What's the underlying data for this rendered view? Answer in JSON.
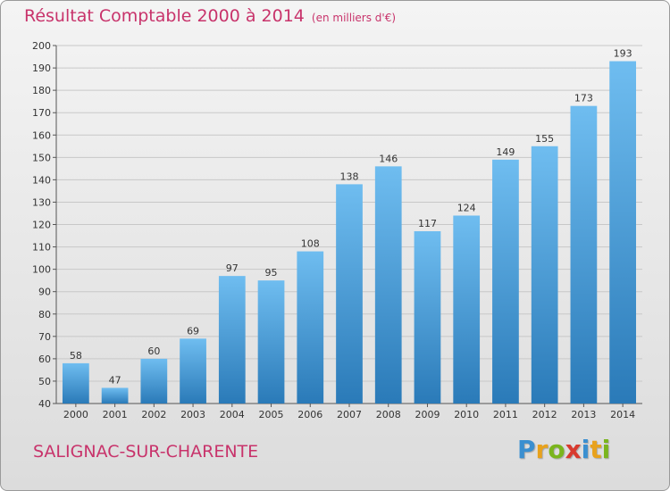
{
  "header": {
    "title": "Résultat Comptable 2000 à 2014",
    "subtitle": "(en milliers d'€)"
  },
  "commune": "SALIGNAC-SUR-CHARENTE",
  "logo": {
    "letters": [
      "P",
      "r",
      "o",
      "x",
      "i",
      "t",
      "i"
    ],
    "colors": [
      "#3a8fd0",
      "#e8a21c",
      "#7ab51d",
      "#d83a2e",
      "#3a8fd0",
      "#e8a21c",
      "#7ab51d"
    ]
  },
  "colors": {
    "bar_light": "#6fbdf0",
    "bar_dark": "#2a7ab8",
    "grid": "#c8c8c8",
    "title": "#c8336b"
  },
  "chart_data": {
    "type": "bar",
    "categories": [
      "2000",
      "2001",
      "2002",
      "2003",
      "2004",
      "2005",
      "2006",
      "2007",
      "2008",
      "2009",
      "2010",
      "2011",
      "2012",
      "2013",
      "2014"
    ],
    "values": [
      58,
      47,
      60,
      69,
      97,
      95,
      108,
      138,
      146,
      117,
      124,
      149,
      155,
      173,
      193
    ],
    "ylim": [
      40,
      200
    ],
    "yticks": [
      40,
      50,
      60,
      70,
      80,
      90,
      100,
      110,
      120,
      130,
      140,
      150,
      160,
      170,
      180,
      190,
      200
    ],
    "grid": true
  }
}
